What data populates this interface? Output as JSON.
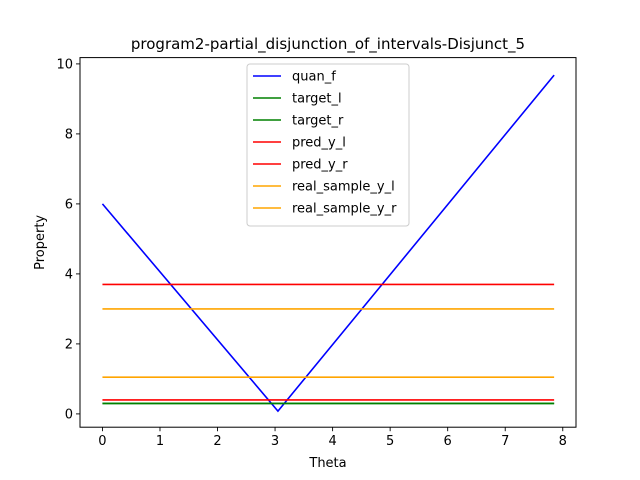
{
  "chart_data": {
    "type": "line",
    "title": "program2-partial_disjunction_of_intervals-Disjunct_5",
    "xlabel": "Theta",
    "ylabel": "Property",
    "xlim": [
      -0.39,
      8.23
    ],
    "ylim": [
      -0.38,
      10.18
    ],
    "xticks": [
      0,
      1,
      2,
      3,
      4,
      5,
      6,
      7,
      8
    ],
    "yticks": [
      0,
      2,
      4,
      6,
      8,
      10
    ],
    "grid": false,
    "legend_position": "upper center",
    "series": [
      {
        "name": "quan_f",
        "color": "#0000ff",
        "x": [
          0,
          3.05,
          7.85
        ],
        "y": [
          6.0,
          0.08,
          9.68
        ]
      },
      {
        "name": "target_l",
        "color": "#008000",
        "x": [
          0,
          7.85
        ],
        "y": [
          0.3,
          0.3
        ]
      },
      {
        "name": "target_r",
        "color": "#008000",
        "x": [
          0,
          7.85
        ],
        "y": [
          0.3,
          0.3
        ]
      },
      {
        "name": "pred_y_l",
        "color": "#ff0000",
        "x": [
          0,
          7.85
        ],
        "y": [
          0.4,
          0.4
        ]
      },
      {
        "name": "pred_y_r",
        "color": "#ff0000",
        "x": [
          0,
          7.85
        ],
        "y": [
          3.7,
          3.7
        ]
      },
      {
        "name": "real_sample_y_l",
        "color": "#ffa500",
        "x": [
          0,
          7.85
        ],
        "y": [
          1.05,
          1.05
        ]
      },
      {
        "name": "real_sample_y_r",
        "color": "#ffa500",
        "x": [
          0,
          7.85
        ],
        "y": [
          3.0,
          3.0
        ]
      }
    ]
  }
}
